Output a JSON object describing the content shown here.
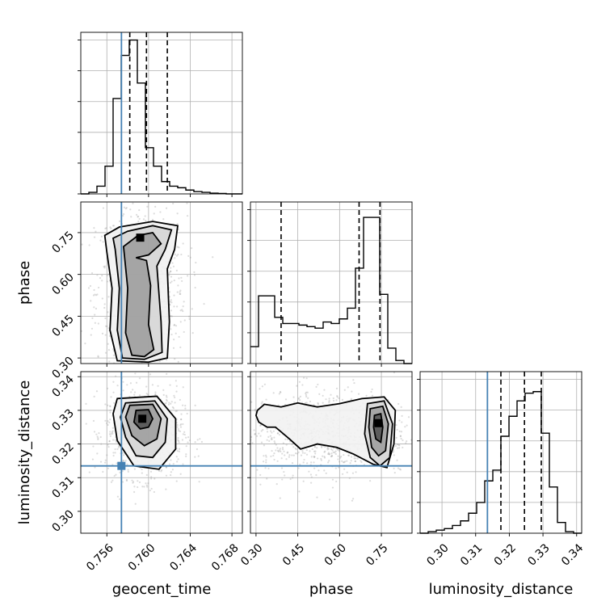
{
  "chart_data": {
    "type": "corner",
    "parameters": [
      {
        "name": "geocent_time",
        "label": "geocent_time",
        "range": [
          0.7535,
          0.769
        ],
        "ticks": [
          0.756,
          0.76,
          0.764,
          0.768
        ],
        "tick_labels": [
          "0.756",
          "0.760",
          "0.764",
          "0.768"
        ],
        "truth": 0.7574,
        "quantiles": [
          0.7582,
          0.7598,
          0.7618
        ],
        "hist_density": [
          0.0,
          0.01,
          0.05,
          0.18,
          0.62,
          0.9,
          1.0,
          0.72,
          0.3,
          0.18,
          0.08,
          0.05,
          0.04,
          0.025,
          0.015,
          0.01,
          0.005,
          0.003,
          0.0,
          0.0
        ]
      },
      {
        "name": "phase",
        "label": "phase",
        "range": [
          0.28,
          0.86
        ],
        "ticks": [
          0.3,
          0.45,
          0.6,
          0.75
        ],
        "tick_labels": [
          "0.30",
          "0.45",
          "0.60",
          "0.75"
        ],
        "truth": null,
        "quantiles": [
          0.39,
          0.67,
          0.745
        ],
        "hist_density": [
          0.11,
          0.44,
          0.44,
          0.3,
          0.26,
          0.26,
          0.25,
          0.24,
          0.23,
          0.27,
          0.26,
          0.29,
          0.36,
          0.62,
          0.95,
          0.95,
          0.45,
          0.1,
          0.02,
          0.0
        ]
      },
      {
        "name": "luminosity_distance",
        "label": "luminosity_distance",
        "range": [
          0.2935,
          0.3415
        ],
        "ticks": [
          0.3,
          0.31,
          0.32,
          0.33,
          0.34
        ],
        "tick_labels": [
          "0.30",
          "0.31",
          "0.32",
          "0.33",
          "0.34"
        ],
        "truth": 0.3135,
        "quantiles": [
          0.3175,
          0.3245,
          0.3295
        ],
        "hist_density": [
          0.0,
          0.01,
          0.02,
          0.03,
          0.05,
          0.08,
          0.13,
          0.2,
          0.34,
          0.41,
          0.63,
          0.76,
          0.86,
          0.91,
          0.92,
          0.65,
          0.3,
          0.07,
          0.01,
          0.0
        ]
      }
    ],
    "diagonal_ylim": [
      0,
      1.05
    ],
    "grid": true,
    "truth_color": "#4682b4",
    "pairs": [
      {
        "x": "geocent_time",
        "y": "phase",
        "peak": [
          0.7592,
          0.732
        ],
        "contours": [
          [
            [
              0.7588,
              0.66
            ],
            [
              0.7598,
              0.65
            ],
            [
              0.7602,
              0.56
            ],
            [
              0.76,
              0.42
            ],
            [
              0.7605,
              0.33
            ],
            [
              0.7596,
              0.305
            ],
            [
              0.7584,
              0.31
            ],
            [
              0.7578,
              0.39
            ],
            [
              0.758,
              0.55
            ],
            [
              0.7576,
              0.7
            ],
            [
              0.759,
              0.74
            ],
            [
              0.7604,
              0.75
            ],
            [
              0.7612,
              0.71
            ],
            [
              0.76,
              0.67
            ]
          ],
          [
            [
              0.758,
              0.755
            ],
            [
              0.7604,
              0.775
            ],
            [
              0.7622,
              0.76
            ],
            [
              0.7616,
              0.69
            ],
            [
              0.7608,
              0.63
            ],
            [
              0.7612,
              0.43
            ],
            [
              0.7613,
              0.32
            ],
            [
              0.7596,
              0.295
            ],
            [
              0.7575,
              0.3
            ],
            [
              0.757,
              0.4
            ],
            [
              0.7572,
              0.55
            ],
            [
              0.7568,
              0.69
            ],
            [
              0.7566,
              0.73
            ]
          ],
          [
            [
              0.7572,
              0.77
            ],
            [
              0.7604,
              0.79
            ],
            [
              0.7628,
              0.775
            ],
            [
              0.7625,
              0.69
            ],
            [
              0.7618,
              0.62
            ],
            [
              0.762,
              0.43
            ],
            [
              0.7618,
              0.3
            ],
            [
              0.76,
              0.285
            ],
            [
              0.757,
              0.29
            ],
            [
              0.7563,
              0.4
            ],
            [
              0.7565,
              0.55
            ],
            [
              0.756,
              0.68
            ],
            [
              0.7558,
              0.74
            ]
          ]
        ]
      },
      {
        "x": "geocent_time",
        "y": "luminosity_distance",
        "peak": [
          0.7594,
          0.3275
        ],
        "contours": [
          [
            [
              0.7588,
              0.33
            ],
            [
              0.76,
              0.3302
            ],
            [
              0.7604,
              0.3275
            ],
            [
              0.76,
              0.325
            ],
            [
              0.7592,
              0.3245
            ],
            [
              0.7586,
              0.3265
            ]
          ],
          [
            [
              0.7582,
              0.3315
            ],
            [
              0.7604,
              0.3318
            ],
            [
              0.7612,
              0.3275
            ],
            [
              0.7608,
              0.3215
            ],
            [
              0.7596,
              0.3195
            ],
            [
              0.7584,
              0.3225
            ],
            [
              0.7578,
              0.328
            ]
          ],
          [
            [
              0.7578,
              0.3322
            ],
            [
              0.7606,
              0.3328
            ],
            [
              0.7618,
              0.3275
            ],
            [
              0.7616,
              0.3205
            ],
            [
              0.7604,
              0.316
            ],
            [
              0.7588,
              0.3165
            ],
            [
              0.7578,
              0.322
            ],
            [
              0.7573,
              0.328
            ]
          ],
          [
            [
              0.757,
              0.3335
            ],
            [
              0.7608,
              0.3342
            ],
            [
              0.7626,
              0.3275
            ],
            [
              0.7626,
              0.3185
            ],
            [
              0.761,
              0.3125
            ],
            [
              0.7586,
              0.3135
            ],
            [
              0.757,
              0.321
            ],
            [
              0.7566,
              0.329
            ]
          ]
        ]
      },
      {
        "x": "phase",
        "y": "luminosity_distance",
        "peak": [
          0.74,
          0.3262
        ],
        "contours": [
          [
            [
              0.725,
              0.3285
            ],
            [
              0.748,
              0.329
            ],
            [
              0.755,
              0.325
            ],
            [
              0.748,
              0.3205
            ],
            [
              0.73,
              0.3215
            ],
            [
              0.722,
              0.325
            ]
          ],
          [
            [
              0.71,
              0.3305
            ],
            [
              0.755,
              0.3312
            ],
            [
              0.775,
              0.326
            ],
            [
              0.765,
              0.318
            ],
            [
              0.74,
              0.3165
            ],
            [
              0.715,
              0.319
            ],
            [
              0.705,
              0.325
            ]
          ],
          [
            [
              0.7,
              0.332
            ],
            [
              0.76,
              0.3328
            ],
            [
              0.79,
              0.326
            ],
            [
              0.78,
              0.316
            ],
            [
              0.745,
              0.3135
            ],
            [
              0.71,
              0.316
            ],
            [
              0.69,
              0.323
            ]
          ],
          [
            [
              0.305,
              0.33
            ],
            [
              0.33,
              0.3318
            ],
            [
              0.39,
              0.331
            ],
            [
              0.45,
              0.3322
            ],
            [
              0.52,
              0.331
            ],
            [
              0.6,
              0.332
            ],
            [
              0.68,
              0.3335
            ],
            [
              0.76,
              0.334
            ],
            [
              0.8,
              0.33
            ],
            [
              0.795,
              0.32
            ],
            [
              0.77,
              0.313
            ],
            [
              0.72,
              0.314
            ],
            [
              0.65,
              0.317
            ],
            [
              0.59,
              0.319
            ],
            [
              0.52,
              0.32
            ],
            [
              0.46,
              0.3185
            ],
            [
              0.42,
              0.3215
            ],
            [
              0.37,
              0.325
            ],
            [
              0.34,
              0.325
            ],
            [
              0.31,
              0.3265
            ],
            [
              0.3,
              0.3285
            ]
          ]
        ]
      }
    ]
  }
}
